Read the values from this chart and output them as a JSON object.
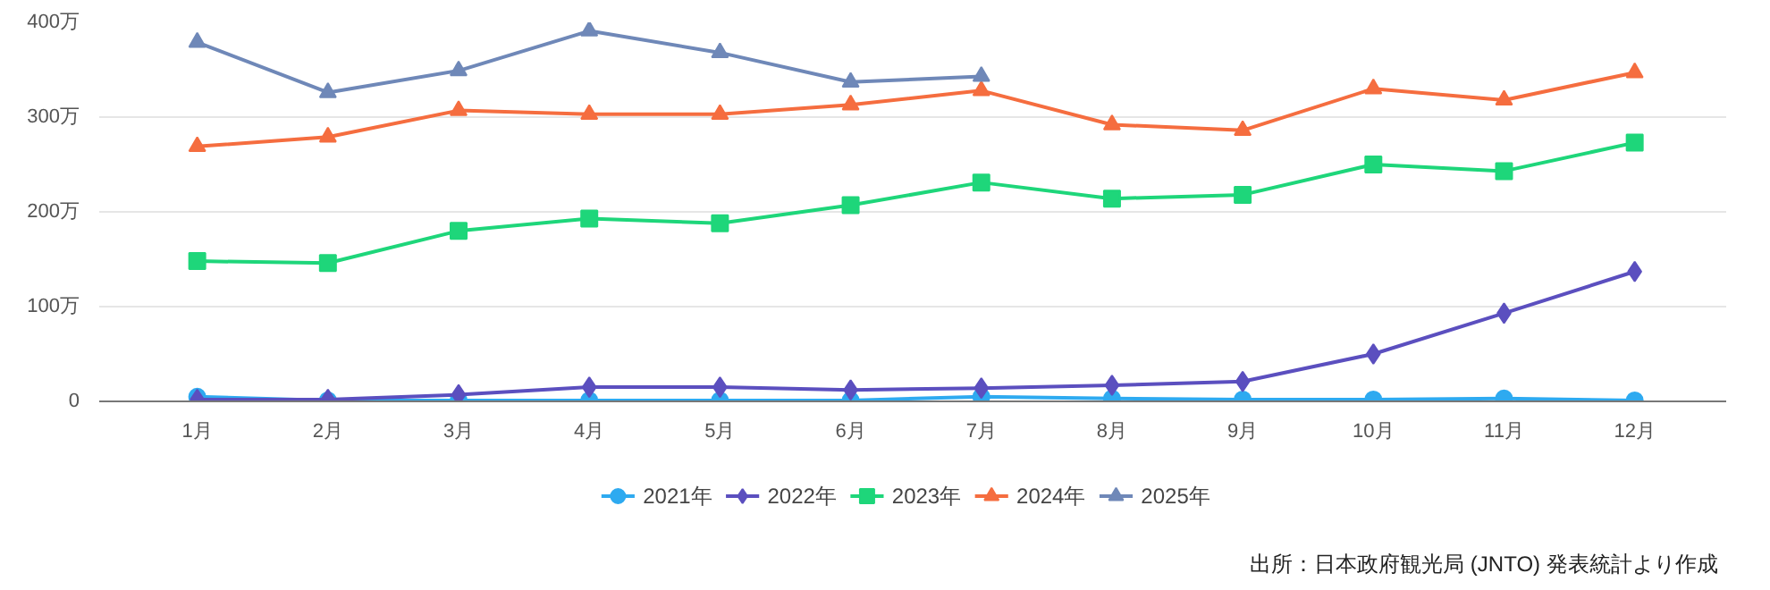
{
  "chart_data": {
    "type": "line",
    "categories": [
      "1月",
      "2月",
      "3月",
      "4月",
      "5月",
      "6月",
      "7月",
      "8月",
      "9月",
      "10月",
      "11月",
      "12月"
    ],
    "series": [
      {
        "name": "2021年",
        "color": "#2eaaf0",
        "marker": "circle",
        "values": [
          5,
          1,
          1,
          1,
          1,
          1,
          5,
          3,
          2,
          2,
          3,
          1
        ]
      },
      {
        "name": "2022年",
        "color": "#5b4fbf",
        "marker": "diamond",
        "values": [
          2,
          2,
          7,
          15,
          15,
          12,
          14,
          17,
          21,
          50,
          93,
          137
        ]
      },
      {
        "name": "2023年",
        "color": "#1ed67a",
        "marker": "square",
        "values": [
          148,
          146,
          180,
          193,
          188,
          207,
          231,
          214,
          218,
          250,
          243,
          273
        ]
      },
      {
        "name": "2024年",
        "color": "#f56d3f",
        "marker": "triangle",
        "values": [
          269,
          279,
          307,
          303,
          303,
          313,
          328,
          292,
          286,
          330,
          318,
          347
        ]
      },
      {
        "name": "2025年",
        "color": "#6f88b8",
        "marker": "triangle",
        "values": [
          379,
          326,
          349,
          391,
          368,
          337,
          343,
          null,
          null,
          null,
          null,
          null
        ]
      }
    ],
    "ylim": [
      0,
      400
    ],
    "yticks": [
      0,
      {
        "value": 100,
        "label": "100万"
      },
      {
        "value": 200,
        "label": "200万"
      },
      {
        "value": 300,
        "label": "300万"
      },
      {
        "value": 400,
        "label": "400万"
      }
    ],
    "grid": "y",
    "legend": "bottom",
    "annotations": [
      "出所：日本政府観光局 (JNTO) 発表統計より作成"
    ]
  }
}
